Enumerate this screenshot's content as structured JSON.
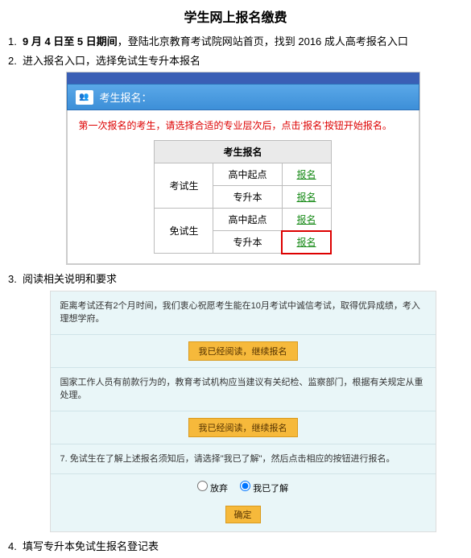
{
  "title": "学生网上报名缴费",
  "steps": {
    "s1_a": "9 月 4 日至 5 日期间",
    "s1_b": "，登陆北京教育考试院网站首页，找到 2016 成人高考报名入口",
    "s2": "进入报名入口，选择免试生专升本报名",
    "s3": "阅读相关说明和要求",
    "s4": "填写专升本免试生报名登记表"
  },
  "panel": {
    "head": "考生报名：",
    "red_note": "第一次报名的考生，请选择合适的专业层次后，点击‘报名’按钮开始报名。",
    "table": {
      "header": "考生报名",
      "link_label": "报名",
      "groups": [
        {
          "group": "考试生",
          "levels": [
            "高中起点",
            "专升本"
          ]
        },
        {
          "group": "免试生",
          "levels": [
            "高中起点",
            "专升本"
          ]
        }
      ]
    }
  },
  "shot2": {
    "line1": "距离考试还有2个月时间，我们衷心祝愿考生能在10月考试中诚信考试，取得优异成绩，考入理想学府。",
    "btn1": "我已经阅读，继续报名",
    "line2": "国家工作人员有前款行为的，教育考试机构应当建议有关纪检、监察部门，根据有关规定从重处理。",
    "btn2": "我已经阅读，继续报名",
    "line3": "7. 免试生在了解上述报名须知后，请选择\"我已了解\"，然后点击相应的按钮进行报名。",
    "radio_a": "放弃",
    "radio_b": "我已了解",
    "confirm": "确定"
  }
}
